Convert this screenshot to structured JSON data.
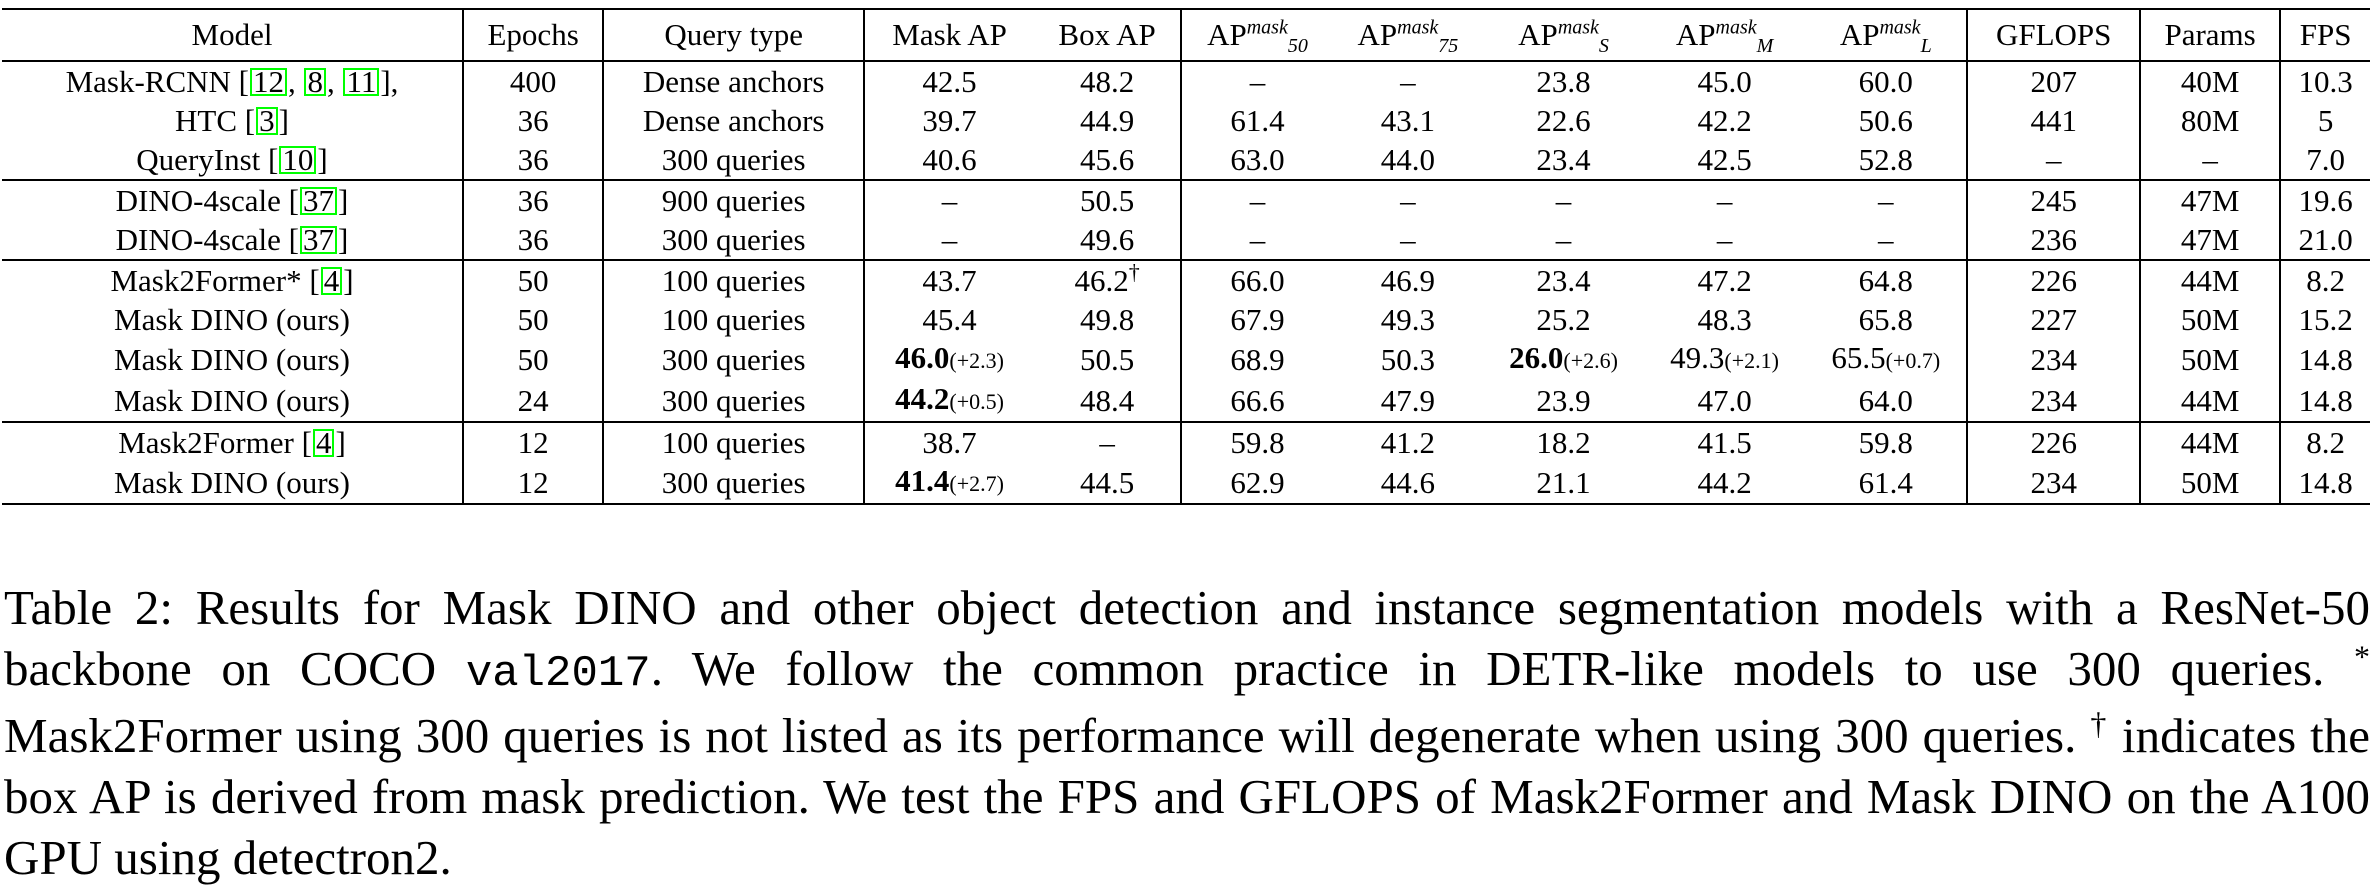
{
  "table": {
    "headers": {
      "model": "Model",
      "epochs": "Epochs",
      "query": "Query type",
      "mask_ap": "Mask AP",
      "box_ap": "Box AP",
      "ap_label": "AP",
      "ap50_sup": "mask",
      "ap50_sub": "50",
      "ap75_sup": "mask",
      "ap75_sub": "75",
      "aps_sup": "mask",
      "aps_sub": "S",
      "apm_sup": "mask",
      "apm_sub": "M",
      "apl_sup": "mask",
      "apl_sub": "L",
      "gflops": "GFLOPS",
      "params": "Params",
      "fps": "FPS"
    },
    "rows": [
      {
        "model": "Mask-RCNN [",
        "refs": [
          "12",
          "8",
          "11"
        ],
        "model_after": "],",
        "epochs": "400",
        "query": "Dense anchors",
        "mask_ap": "42.5",
        "box_ap": "48.2",
        "ap50": "–",
        "ap75": "–",
        "aps": "23.8",
        "apm": "45.0",
        "apl": "60.0",
        "gflops": "207",
        "params": "40M",
        "fps": "10.3"
      },
      {
        "model": "HTC [",
        "refs": [
          "3"
        ],
        "model_after": "]",
        "epochs": "36",
        "query": "Dense anchors",
        "mask_ap": "39.7",
        "box_ap": "44.9",
        "ap50": "61.4",
        "ap75": "43.1",
        "aps": "22.6",
        "apm": "42.2",
        "apl": "50.6",
        "gflops": "441",
        "params": "80M",
        "fps": "5"
      },
      {
        "model": "QueryInst [",
        "refs": [
          "10"
        ],
        "model_after": "]",
        "epochs": "36",
        "query": "300 queries",
        "mask_ap": "40.6",
        "box_ap": "45.6",
        "ap50": "63.0",
        "ap75": "44.0",
        "aps": "23.4",
        "apm": "42.5",
        "apl": "52.8",
        "gflops": "–",
        "params": "–",
        "fps": "7.0"
      },
      {
        "model": "DINO-4scale [",
        "refs": [
          "37"
        ],
        "model_after": "]",
        "epochs": "36",
        "query": "900 queries",
        "mask_ap": "–",
        "box_ap": "50.5",
        "ap50": "–",
        "ap75": "–",
        "aps": "–",
        "apm": "–",
        "apl": "–",
        "gflops": "245",
        "params": "47M",
        "fps": "19.6"
      },
      {
        "model": "DINO-4scale [",
        "refs": [
          "37"
        ],
        "model_after": "]",
        "epochs": "36",
        "query": "300 queries",
        "mask_ap": "–",
        "box_ap": "49.6",
        "ap50": "–",
        "ap75": "–",
        "aps": "–",
        "apm": "–",
        "apl": "–",
        "gflops": "236",
        "params": "47M",
        "fps": "21.0"
      },
      {
        "model": "Mask2Former* [",
        "refs": [
          "4"
        ],
        "model_after": "]",
        "epochs": "50",
        "query": "100 queries",
        "mask_ap": "43.7",
        "box_ap": "46.2",
        "box_ap_mark": "†",
        "ap50": "66.0",
        "ap75": "46.9",
        "aps": "23.4",
        "apm": "47.2",
        "apl": "64.8",
        "gflops": "226",
        "params": "44M",
        "fps": "8.2"
      },
      {
        "model": "Mask DINO (ours)",
        "epochs": "50",
        "query": "100 queries",
        "mask_ap": "45.4",
        "box_ap": "49.8",
        "ap50": "67.9",
        "ap75": "49.3",
        "aps": "25.2",
        "apm": "48.3",
        "apl": "65.8",
        "gflops": "227",
        "params": "50M",
        "fps": "15.2"
      },
      {
        "model": "Mask DINO (ours)",
        "epochs": "50",
        "query": "300 queries",
        "mask_ap": "46.0",
        "mask_ap_delta": "(+2.3)",
        "box_ap": "50.5",
        "ap50": "68.9",
        "ap75": "50.3",
        "aps": "26.0",
        "aps_delta": "(+2.6)",
        "apm": "49.3",
        "apm_delta": "(+2.1)",
        "apl": "65.5",
        "apl_delta": "(+0.7)",
        "gflops": "234",
        "params": "50M",
        "fps": "14.8"
      },
      {
        "model": "Mask DINO (ours)",
        "epochs": "24",
        "query": "300 queries",
        "mask_ap": "44.2",
        "mask_ap_delta": "(+0.5)",
        "box_ap": "48.4",
        "ap50": "66.6",
        "ap75": "47.9",
        "aps": "23.9",
        "apm": "47.0",
        "apl": "64.0",
        "gflops": "234",
        "params": "44M",
        "fps": "14.8"
      },
      {
        "model": "Mask2Former [",
        "refs": [
          "4"
        ],
        "model_after": "]",
        "epochs": "12",
        "query": "100 queries",
        "mask_ap": "38.7",
        "box_ap": "–",
        "ap50": "59.8",
        "ap75": "41.2",
        "aps": "18.2",
        "apm": "41.5",
        "apl": "59.8",
        "gflops": "226",
        "params": "44M",
        "fps": "8.2"
      },
      {
        "model": "Mask DINO (ours)",
        "epochs": "12",
        "query": "300 queries",
        "mask_ap": "41.4",
        "mask_ap_delta": "(+2.7)",
        "box_ap": "44.5",
        "ap50": "62.9",
        "ap75": "44.6",
        "aps": "21.1",
        "apm": "44.2",
        "apl": "61.4",
        "gflops": "234",
        "params": "50M",
        "fps": "14.8"
      }
    ]
  },
  "caption": {
    "part1": "Table 2: Results for Mask DINO and other object detection and instance segmentation models with a ResNet-50 backbone on COCO ",
    "code": "val2017",
    "part2": ". We follow the common practice in DETR-like models to use 300 queries. ",
    "star": "*",
    "part3": " Mask2Former using 300 queries is not listed as its performance will degenerate when using 300 queries. ",
    "dagger": "†",
    "part4": " indicates the box AP is derived from mask prediction. We test the FPS and GFLOPS of Mask2Former and Mask DINO on the A100 GPU using detectron2."
  },
  "colors": {
    "citation_box": "#00ff00",
    "text": "#000000"
  }
}
